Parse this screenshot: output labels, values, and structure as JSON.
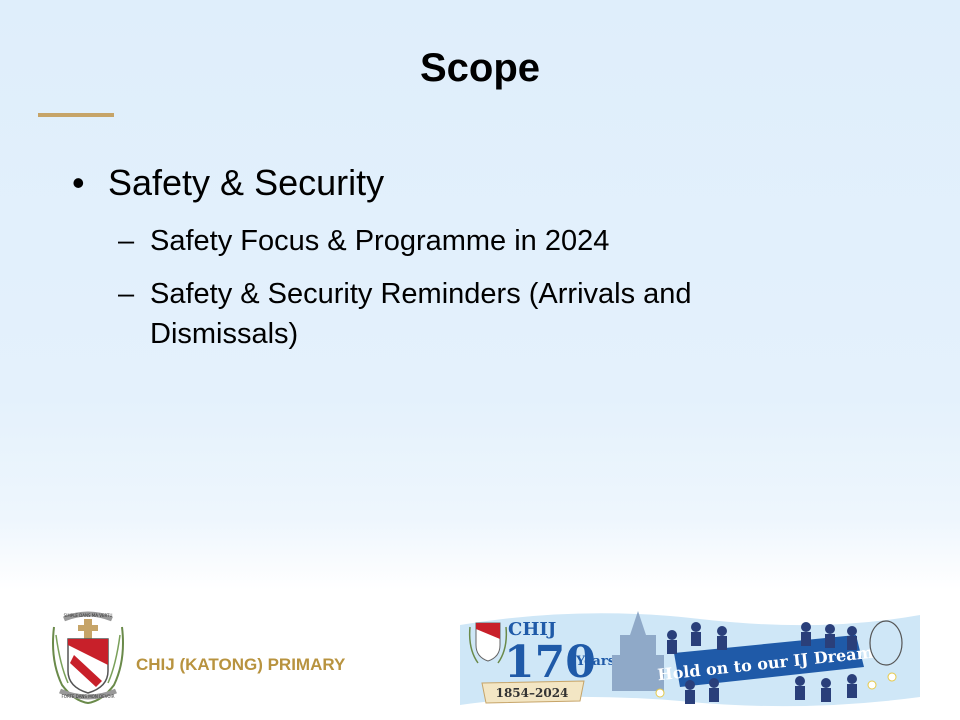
{
  "slide": {
    "title": "Scope",
    "bullet": "Safety & Security",
    "subitems": [
      "Safety Focus & Programme in 2024",
      "Safety & Security Reminders (Arrivals and Dismissals)"
    ],
    "bullet_glyph": "•",
    "dash_glyph": "–"
  },
  "footer": {
    "school_name": "CHIJ (KATONG) PRIMARY",
    "crest_motto_top": "SIMPLE DANS MA VERTU",
    "crest_motto_bottom": "FORTE DANS MON DEVOIR",
    "banner_chij": "CHIJ",
    "banner_number": "170",
    "banner_years": "Years",
    "banner_dates": "1854–2024",
    "banner_slogan": "Hold on to our IJ Dream"
  },
  "colors": {
    "accent": "#c6a468",
    "school_name": "#b8933f",
    "crest_red": "#c8202a",
    "banner_blue": "#1f5aa8"
  }
}
